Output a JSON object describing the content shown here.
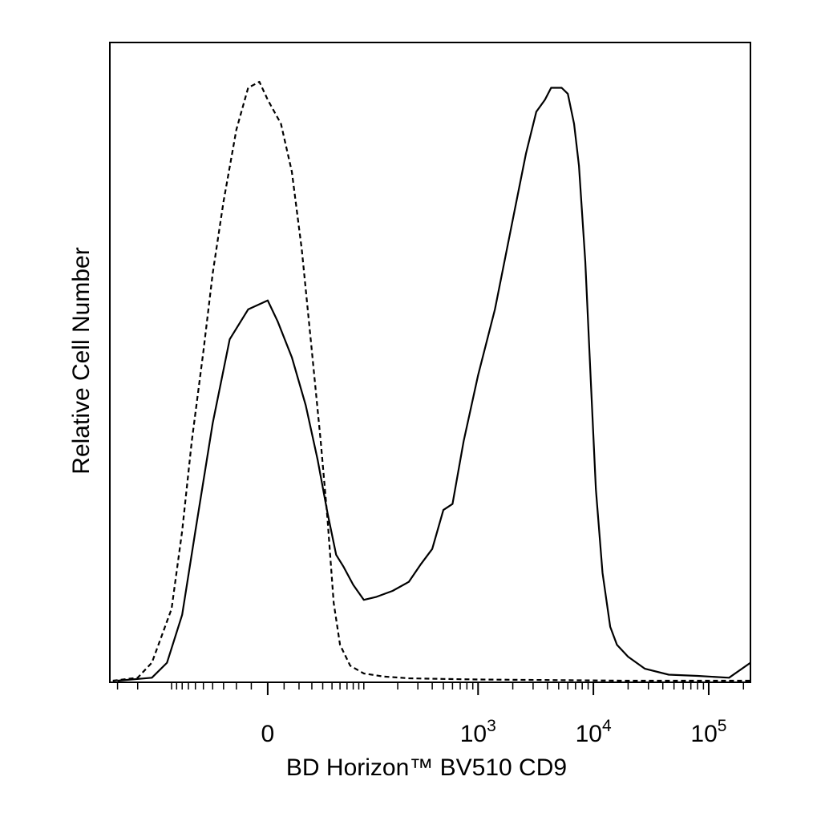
{
  "chart_data": {
    "type": "line",
    "title": "",
    "xlabel": "BD Horizon™ BV510 CD9",
    "ylabel": "Relative Cell Number",
    "x_scale": "biexponential",
    "xlim": [
      -350,
      230000
    ],
    "ylim": [
      0,
      1
    ],
    "grid": false,
    "legend": "none",
    "x_ticks": [
      {
        "value": 0,
        "label": "0",
        "sup": ""
      },
      {
        "value": 1000,
        "label": "10",
        "sup": "3"
      },
      {
        "value": 10000,
        "label": "10",
        "sup": "4"
      },
      {
        "value": 100000,
        "label": "10",
        "sup": "5"
      }
    ],
    "series": [
      {
        "style": "dashed",
        "color": "#000000",
        "points": [
          [
            -330,
            0.0
          ],
          [
            -200,
            0.005
          ],
          [
            -150,
            0.03
          ],
          [
            -100,
            0.12
          ],
          [
            -80,
            0.25
          ],
          [
            -65,
            0.4
          ],
          [
            -50,
            0.55
          ],
          [
            -40,
            0.68
          ],
          [
            -30,
            0.8
          ],
          [
            -20,
            0.92
          ],
          [
            -12,
            0.99
          ],
          [
            -5,
            1.0
          ],
          [
            0,
            0.97
          ],
          [
            8,
            0.93
          ],
          [
            15,
            0.85
          ],
          [
            22,
            0.72
          ],
          [
            30,
            0.55
          ],
          [
            38,
            0.4
          ],
          [
            45,
            0.27
          ],
          [
            52,
            0.13
          ],
          [
            60,
            0.06
          ],
          [
            75,
            0.025
          ],
          [
            100,
            0.012
          ],
          [
            150,
            0.007
          ],
          [
            250,
            0.004
          ],
          [
            500,
            0.003
          ],
          [
            1000,
            0.002
          ],
          [
            5000,
            0.001
          ],
          [
            20000,
            0.0
          ],
          [
            230000,
            0.0
          ]
        ]
      },
      {
        "style": "solid",
        "color": "#000000",
        "points": [
          [
            -300,
            0.0
          ],
          [
            -150,
            0.005
          ],
          [
            -110,
            0.03
          ],
          [
            -80,
            0.11
          ],
          [
            -60,
            0.25
          ],
          [
            -40,
            0.43
          ],
          [
            -25,
            0.57
          ],
          [
            -12,
            0.62
          ],
          [
            0,
            0.635
          ],
          [
            6,
            0.6
          ],
          [
            15,
            0.54
          ],
          [
            25,
            0.46
          ],
          [
            35,
            0.37
          ],
          [
            45,
            0.28
          ],
          [
            55,
            0.21
          ],
          [
            65,
            0.19
          ],
          [
            80,
            0.16
          ],
          [
            100,
            0.135
          ],
          [
            130,
            0.14
          ],
          [
            180,
            0.15
          ],
          [
            250,
            0.165
          ],
          [
            320,
            0.195
          ],
          [
            400,
            0.22
          ],
          [
            500,
            0.285
          ],
          [
            600,
            0.295
          ],
          [
            750,
            0.4
          ],
          [
            1000,
            0.51
          ],
          [
            1400,
            0.62
          ],
          [
            2000,
            0.77
          ],
          [
            2600,
            0.88
          ],
          [
            3200,
            0.95
          ],
          [
            3800,
            0.97
          ],
          [
            4300,
            0.99
          ],
          [
            4800,
            0.99
          ],
          [
            5300,
            0.99
          ],
          [
            6000,
            0.98
          ],
          [
            6800,
            0.93
          ],
          [
            7500,
            0.86
          ],
          [
            8500,
            0.7
          ],
          [
            9500,
            0.5
          ],
          [
            10500,
            0.32
          ],
          [
            12000,
            0.18
          ],
          [
            14000,
            0.09
          ],
          [
            16000,
            0.06
          ],
          [
            20000,
            0.04
          ],
          [
            28000,
            0.02
          ],
          [
            45000,
            0.01
          ],
          [
            80000,
            0.008
          ],
          [
            150000,
            0.005
          ],
          [
            230000,
            0.03
          ]
        ]
      }
    ]
  }
}
